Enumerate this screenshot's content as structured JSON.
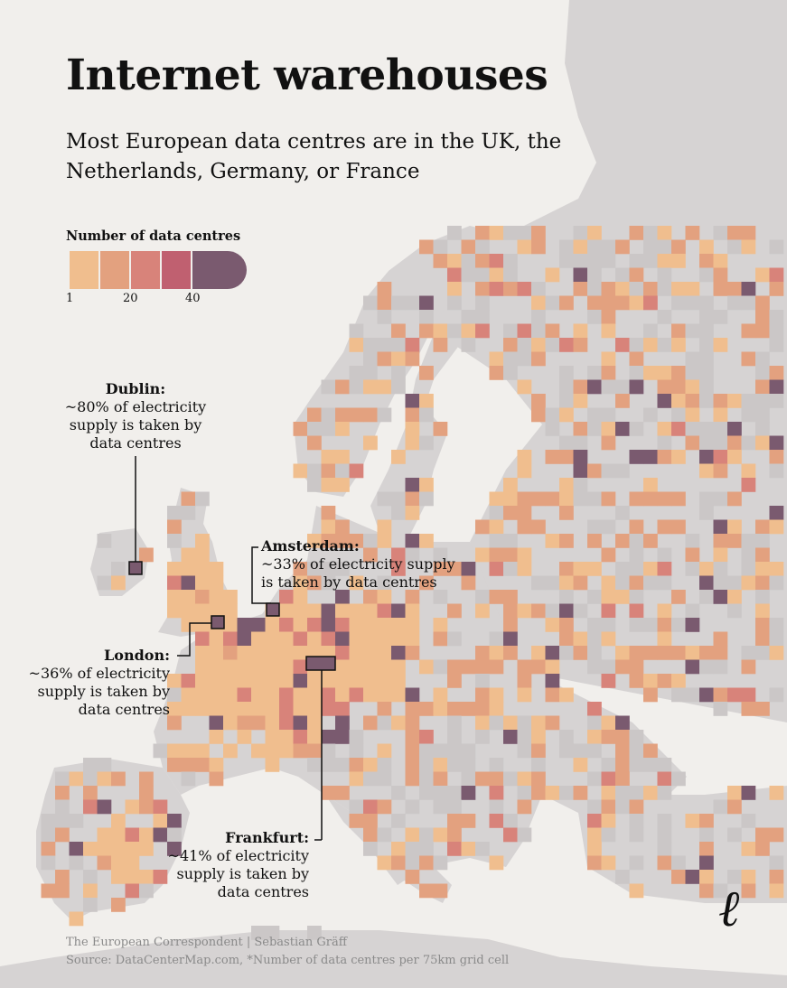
{
  "title": "Internet warehouses",
  "subtitle": "Most European data centres are in the UK, the Netherlands, Germany, or France",
  "legend": {
    "title": "Number of data centres",
    "ticks": [
      "1",
      "20",
      "40"
    ],
    "colors": [
      "#f0be8e",
      "#e3a17f",
      "#d8837a",
      "#c06070",
      "#7a5a6f"
    ]
  },
  "annotations": {
    "dublin": {
      "city": "Dublin:",
      "text": "~80% of electricity supply is taken by data centres"
    },
    "amsterdam": {
      "city": "Amsterdam:",
      "text": "~33% of electricity supply is taken by data centres"
    },
    "london": {
      "city": "London:",
      "text": "~36% of electricity supply is taken by data centres"
    },
    "frankfurt": {
      "city": "Frankfurt:",
      "text": "~41% of electricity supply is taken by data centres"
    }
  },
  "footer": {
    "credit": "The European Correspondent | Sebastian Gräff",
    "source": "Source: DataCenterMap.com, *Number of data centres per 75km grid cell"
  },
  "brand_mark": "ℓ",
  "colors": {
    "background": "#f1efec",
    "land": "#d6d3d3",
    "grid_empty": "#cbc7c7",
    "annotation_line": "#111111"
  }
}
